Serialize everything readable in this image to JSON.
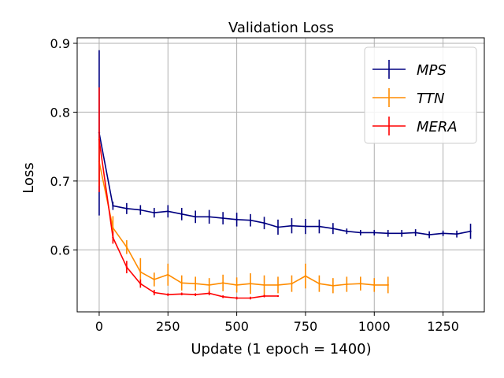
{
  "chart_data": {
    "type": "line",
    "title": "Validation Loss",
    "xlabel": "Update (1 epoch = 1400)",
    "ylabel": "Loss",
    "xlim": [
      -80,
      1400
    ],
    "ylim": [
      0.51,
      0.908
    ],
    "xticks": [
      0,
      250,
      500,
      750,
      1000,
      1250
    ],
    "yticks": [
      0.6,
      0.7,
      0.8,
      0.9
    ],
    "xtick_labels": [
      "0",
      "250",
      "500",
      "750",
      "1000",
      "1250"
    ],
    "ytick_labels": [
      "0.6",
      "0.7",
      "0.8",
      "0.9"
    ],
    "grid": true,
    "legend_position": "top-right",
    "series": [
      {
        "name": "MPS",
        "color": "#000080",
        "x": [
          0,
          50,
          100,
          150,
          200,
          250,
          300,
          350,
          400,
          450,
          500,
          550,
          600,
          650,
          700,
          750,
          800,
          850,
          900,
          950,
          1000,
          1050,
          1100,
          1150,
          1200,
          1250,
          1300,
          1350
        ],
        "y": [
          0.77,
          0.664,
          0.66,
          0.658,
          0.654,
          0.656,
          0.652,
          0.648,
          0.648,
          0.646,
          0.644,
          0.643,
          0.639,
          0.633,
          0.635,
          0.634,
          0.634,
          0.631,
          0.627,
          0.625,
          0.625,
          0.624,
          0.624,
          0.625,
          0.622,
          0.624,
          0.623,
          0.627
        ],
        "err": [
          0.12,
          0.006,
          0.008,
          0.007,
          0.007,
          0.009,
          0.009,
          0.009,
          0.01,
          0.009,
          0.01,
          0.009,
          0.009,
          0.011,
          0.011,
          0.011,
          0.01,
          0.008,
          0.004,
          0.004,
          0.004,
          0.005,
          0.005,
          0.005,
          0.005,
          0.004,
          0.005,
          0.011
        ]
      },
      {
        "name": "TTN",
        "color": "#ff8c00",
        "x": [
          0,
          50,
          100,
          150,
          200,
          250,
          300,
          350,
          400,
          450,
          500,
          550,
          600,
          650,
          700,
          750,
          800,
          850,
          900,
          950,
          1000,
          1050
        ],
        "y": [
          0.728,
          0.632,
          0.604,
          0.568,
          0.557,
          0.564,
          0.552,
          0.551,
          0.549,
          0.552,
          0.549,
          0.551,
          0.549,
          0.549,
          0.551,
          0.562,
          0.551,
          0.548,
          0.55,
          0.551,
          0.549,
          0.549
        ],
        "err": [
          0.035,
          0.017,
          0.01,
          0.02,
          0.01,
          0.016,
          0.011,
          0.01,
          0.01,
          0.012,
          0.011,
          0.015,
          0.014,
          0.012,
          0.012,
          0.018,
          0.012,
          0.011,
          0.011,
          0.01,
          0.01,
          0.012
        ]
      },
      {
        "name": "MERA",
        "color": "#ff0000",
        "x": [
          0,
          50,
          100,
          150,
          200,
          250,
          300,
          350,
          400,
          450,
          500,
          550,
          600,
          650
        ],
        "y": [
          0.76,
          0.618,
          0.575,
          0.551,
          0.538,
          0.535,
          0.536,
          0.535,
          0.537,
          0.532,
          0.53,
          0.53,
          0.533,
          0.533
        ],
        "err": [
          0.076,
          0.009,
          0.009,
          0.006,
          0.004,
          0.002,
          0.002,
          0.002,
          0.003,
          0.002,
          0.002,
          0.002,
          0.002,
          0.001
        ]
      }
    ]
  }
}
